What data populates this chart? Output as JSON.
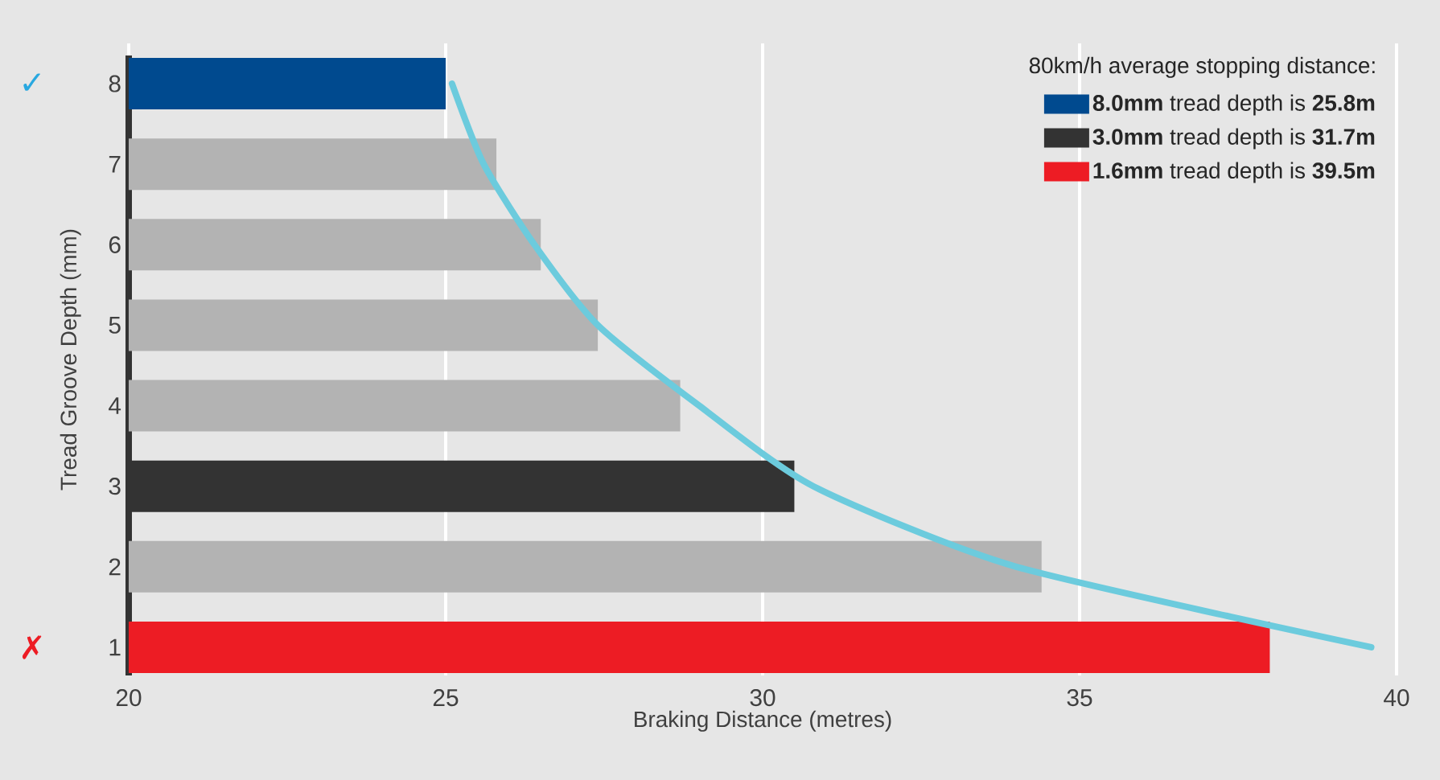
{
  "chart_data": {
    "type": "bar",
    "orientation": "horizontal",
    "xlabel": "Braking Distance (metres)",
    "ylabel": "Tread Groove Depth (mm)",
    "legend_title": "80km/h average stopping distance:",
    "categories": [
      "8",
      "7",
      "6",
      "5",
      "4",
      "3",
      "2",
      "1"
    ],
    "series": [
      {
        "name": "**8.0mm** tread depth is **25.8m**",
        "color": "#004a8f",
        "values": [
          25.0,
          null,
          null,
          null,
          null,
          null,
          null,
          null
        ]
      },
      {
        "name": "**3.0mm** tread depth is **31.7m**",
        "color": "#333333",
        "values": [
          null,
          null,
          null,
          null,
          null,
          30.5,
          null,
          null
        ]
      },
      {
        "name": "**1.6mm** tread depth is **39.5m**",
        "color": "#ed1c24",
        "values": [
          null,
          null,
          null,
          null,
          null,
          null,
          null,
          38.0
        ]
      },
      {
        "color": "#b3b3b3",
        "values": [
          null,
          25.8,
          26.5,
          27.4,
          28.7,
          null,
          34.4,
          null
        ]
      },
      {
        "type": "line",
        "color": "#6ccbdd",
        "values": [
          25.1,
          25.6,
          26.4,
          27.4,
          29.0,
          30.8,
          34.0,
          39.6
        ]
      }
    ],
    "xlim": [
      20,
      40
    ],
    "xticks": [
      20,
      25,
      30,
      35,
      40
    ],
    "grid": "x",
    "legend": "top right",
    "annotations": [
      "✓",
      "✗"
    ]
  }
}
